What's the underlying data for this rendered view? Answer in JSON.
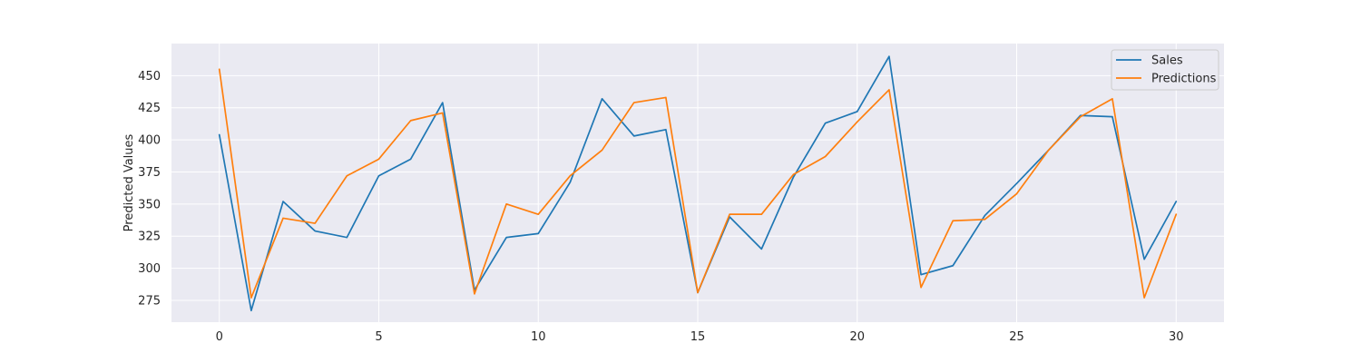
{
  "chart_data": {
    "type": "line",
    "title": "",
    "xlabel": "",
    "ylabel": "Predicted Values",
    "x": [
      0,
      1,
      2,
      3,
      4,
      5,
      6,
      7,
      8,
      9,
      10,
      11,
      12,
      13,
      14,
      15,
      16,
      17,
      18,
      19,
      20,
      21,
      22,
      23,
      24,
      25,
      26,
      27,
      28,
      29,
      30
    ],
    "xlim": [
      -1.5,
      31.5
    ],
    "ylim": [
      258,
      475
    ],
    "xticks": [
      0,
      5,
      10,
      15,
      20,
      25,
      30
    ],
    "yticks": [
      275,
      300,
      325,
      350,
      375,
      400,
      425,
      450
    ],
    "grid": true,
    "legend_position": "top-right",
    "background": "#eaeaf2",
    "series": [
      {
        "name": "Sales",
        "color": "#1f77b4",
        "values": [
          404,
          267,
          352,
          329,
          324,
          372,
          385,
          429,
          283,
          324,
          327,
          367,
          432,
          403,
          408,
          281,
          340,
          315,
          371,
          413,
          422,
          465,
          295,
          302,
          341,
          366,
          392,
          419,
          418,
          307,
          352
        ]
      },
      {
        "name": "Predictions",
        "color": "#ff7f0e",
        "values": [
          455,
          277,
          339,
          335,
          372,
          385,
          415,
          421,
          280,
          350,
          342,
          372,
          392,
          429,
          433,
          281,
          342,
          342,
          373,
          387,
          414,
          439,
          285,
          337,
          338,
          358,
          392,
          418,
          432,
          277,
          342
        ]
      }
    ]
  }
}
